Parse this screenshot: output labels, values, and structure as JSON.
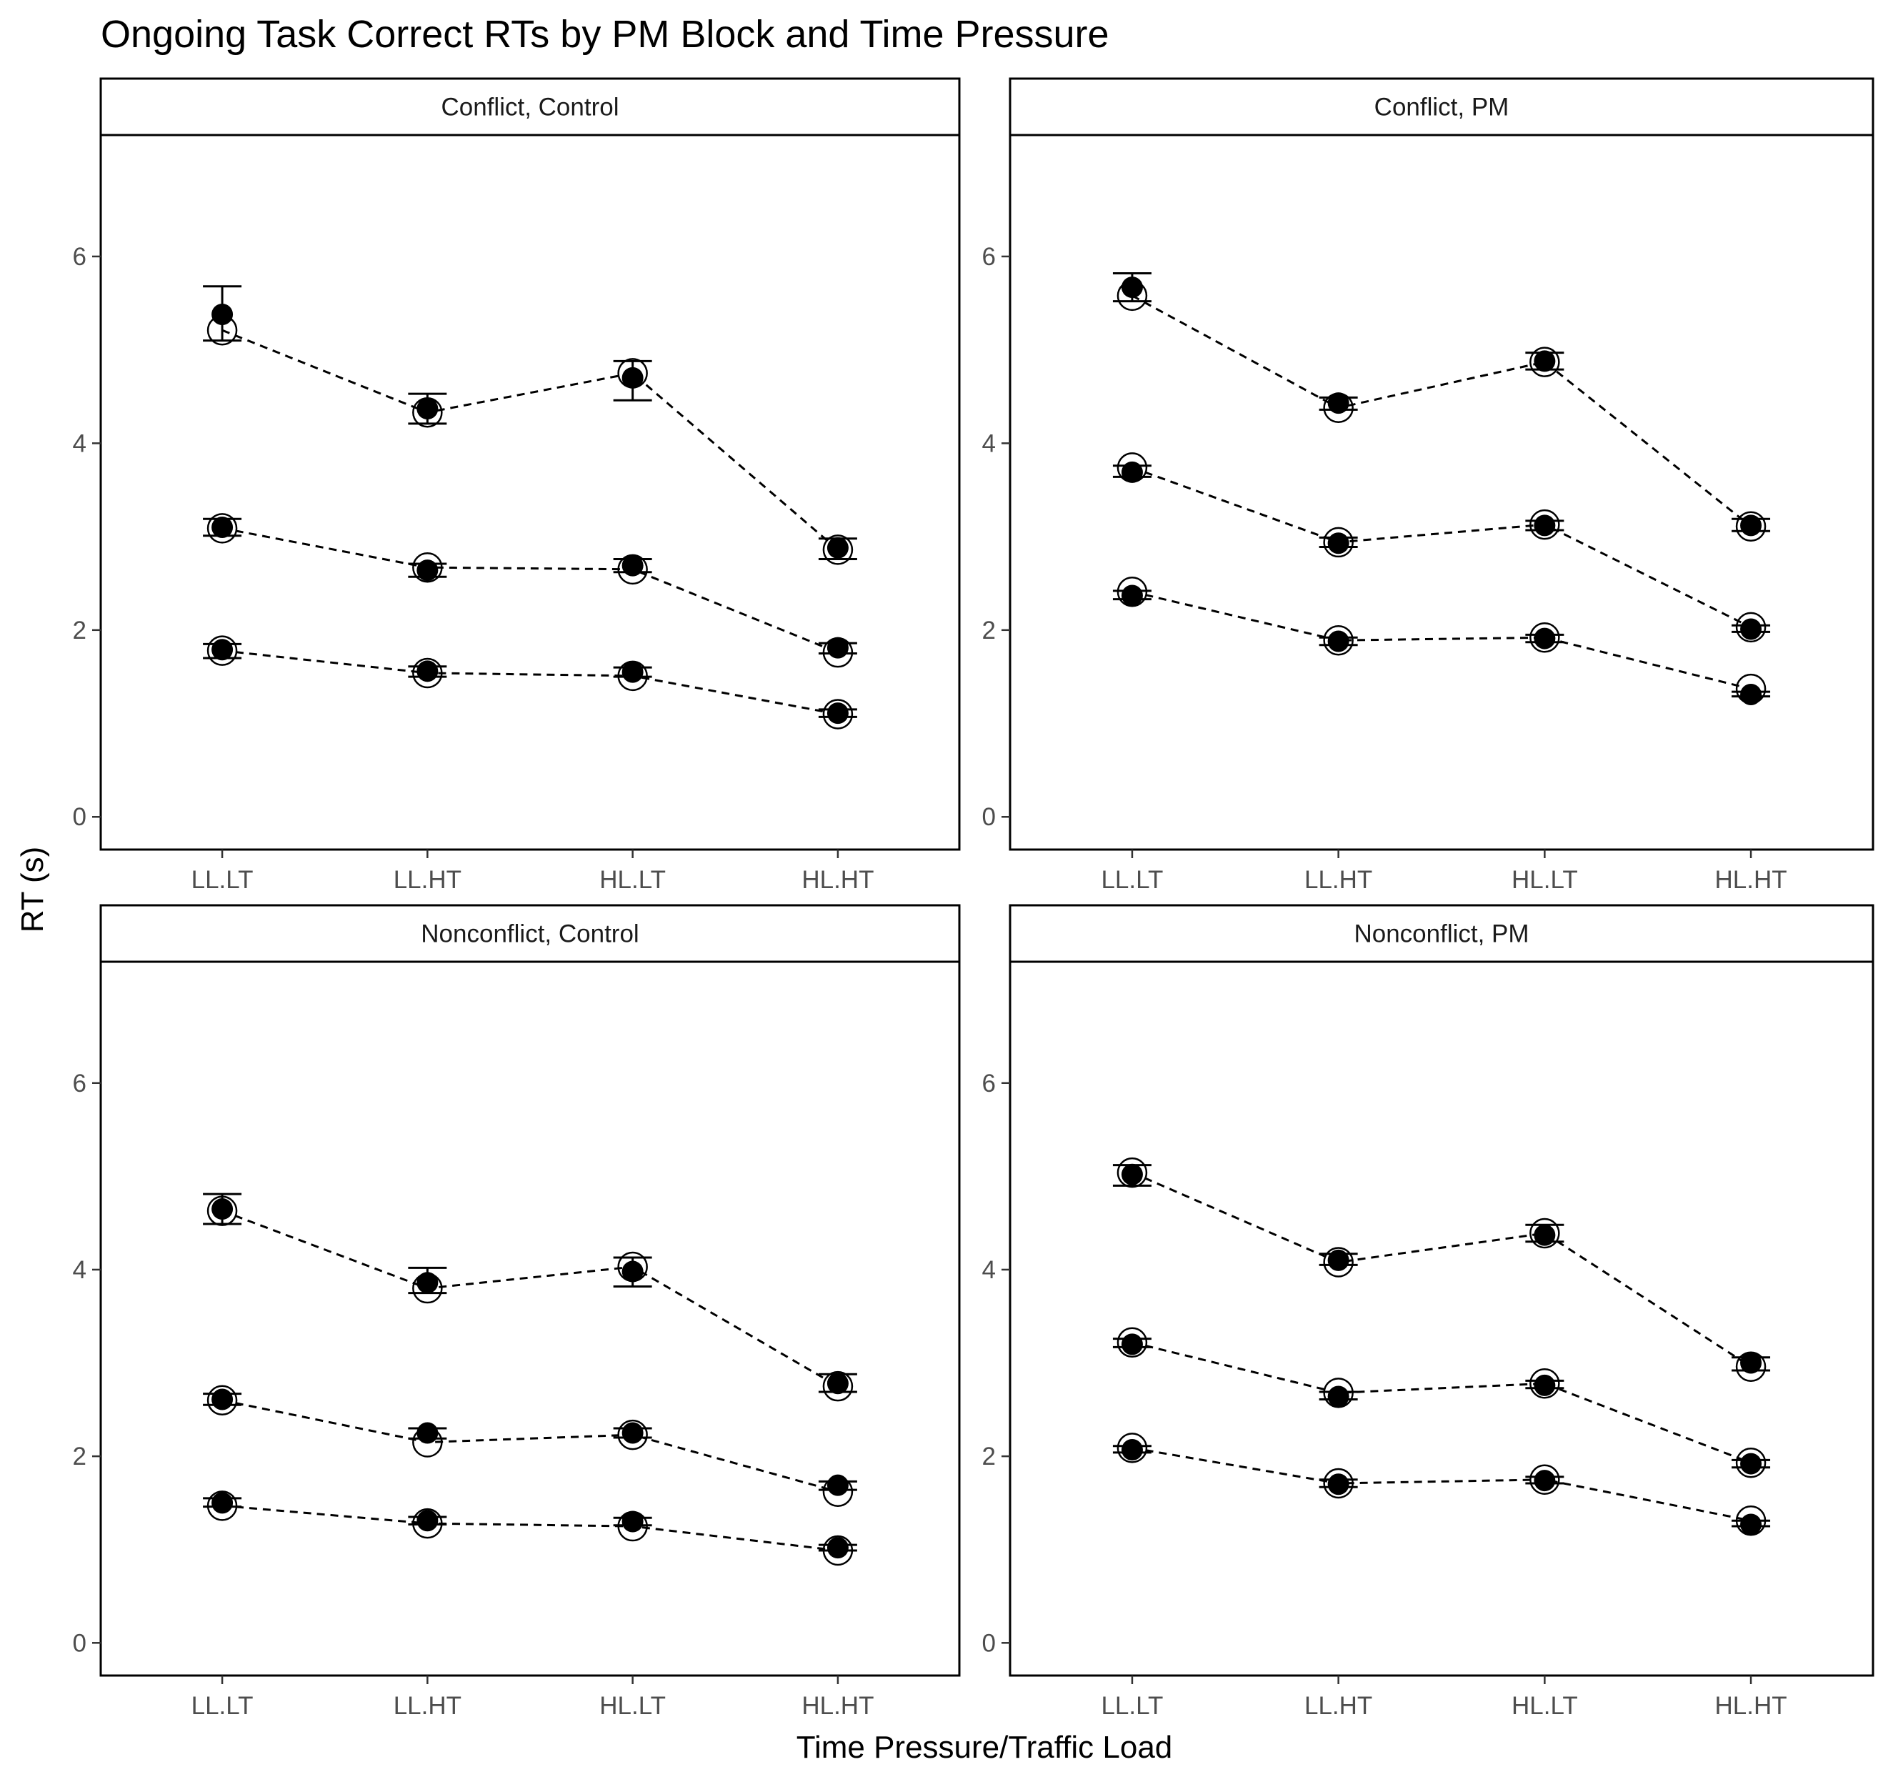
{
  "chart_data": {
    "type": "scatter",
    "title": "Ongoing Task Correct RTs by PM Block and Time Pressure",
    "xlabel": "Time Pressure/Traffic Load",
    "ylabel": "RT (s)",
    "categories": [
      "LL.LT",
      "LL.HT",
      "HL.LT",
      "HL.HT"
    ],
    "ylim": [
      -0.35,
      7.3
    ],
    "yticks": [
      0,
      2,
      4,
      6
    ],
    "grid": false,
    "legend": "none",
    "marker_styles": {
      "filled": "observed",
      "open": "model"
    },
    "panels": [
      {
        "strip_label": "Conflict, Control",
        "series": [
          {
            "filled": [
              5.38,
              4.37,
              4.7,
              2.88
            ],
            "open": [
              5.21,
              4.33,
              4.75,
              2.86
            ],
            "err_low": [
              5.1,
              4.21,
              4.46,
              2.76
            ],
            "err_high": [
              5.68,
              4.53,
              4.88,
              2.98
            ]
          },
          {
            "filled": [
              3.1,
              2.64,
              2.69,
              1.81
            ],
            "open": [
              3.09,
              2.67,
              2.65,
              1.76
            ],
            "err_low": [
              3.01,
              2.57,
              2.62,
              1.75
            ],
            "err_high": [
              3.19,
              2.71,
              2.76,
              1.86
            ]
          },
          {
            "filled": [
              1.79,
              1.56,
              1.55,
              1.11
            ],
            "open": [
              1.78,
              1.54,
              1.51,
              1.1
            ],
            "err_low": [
              1.7,
              1.5,
              1.5,
              1.07
            ],
            "err_high": [
              1.85,
              1.61,
              1.6,
              1.15
            ]
          }
        ]
      },
      {
        "strip_label": "Conflict, PM",
        "series": [
          {
            "filled": [
              5.67,
              4.43,
              4.88,
              3.12
            ],
            "open": [
              5.58,
              4.38,
              4.87,
              3.11
            ],
            "err_low": [
              5.52,
              4.36,
              4.79,
              3.06
            ],
            "err_high": [
              5.82,
              4.49,
              4.97,
              3.19
            ]
          },
          {
            "filled": [
              3.69,
              2.93,
              3.12,
              2.01
            ],
            "open": [
              3.74,
              2.94,
              3.13,
              2.03
            ],
            "err_low": [
              3.64,
              2.89,
              3.07,
              1.98
            ],
            "err_high": [
              3.76,
              2.99,
              3.17,
              2.05
            ]
          },
          {
            "filled": [
              2.37,
              1.88,
              1.91,
              1.31
            ],
            "open": [
              2.41,
              1.89,
              1.92,
              1.37
            ],
            "err_low": [
              2.33,
              1.84,
              1.87,
              1.29
            ],
            "err_high": [
              2.42,
              1.92,
              1.95,
              1.34
            ]
          }
        ]
      },
      {
        "strip_label": "Nonconflict, Control",
        "series": [
          {
            "filled": [
              4.65,
              3.86,
              3.98,
              2.78
            ],
            "open": [
              4.63,
              3.8,
              4.03,
              2.75
            ],
            "err_low": [
              4.49,
              3.75,
              3.82,
              2.69
            ],
            "err_high": [
              4.81,
              4.02,
              4.13,
              2.88
            ]
          },
          {
            "filled": [
              2.61,
              2.25,
              2.25,
              1.69
            ],
            "open": [
              2.6,
              2.15,
              2.23,
              1.62
            ],
            "err_low": [
              2.55,
              2.19,
              2.2,
              1.64
            ],
            "err_high": [
              2.67,
              2.3,
              2.3,
              1.73
            ]
          },
          {
            "filled": [
              1.5,
              1.31,
              1.3,
              1.02
            ],
            "open": [
              1.47,
              1.28,
              1.25,
              0.99
            ],
            "err_low": [
              1.46,
              1.27,
              1.26,
              0.99
            ],
            "err_high": [
              1.55,
              1.35,
              1.34,
              1.05
            ]
          }
        ]
      },
      {
        "strip_label": "Nonconflict, PM",
        "series": [
          {
            "filled": [
              5.02,
              4.1,
              4.37,
              3.0
            ],
            "open": [
              5.04,
              4.08,
              4.39,
              2.96
            ],
            "err_low": [
              4.9,
              4.05,
              4.3,
              2.92
            ],
            "err_high": [
              5.12,
              4.17,
              4.48,
              3.06
            ]
          },
          {
            "filled": [
              3.2,
              2.64,
              2.76,
              1.92
            ],
            "open": [
              3.22,
              2.68,
              2.78,
              1.93
            ],
            "err_low": [
              3.17,
              2.61,
              2.73,
              1.88
            ],
            "err_high": [
              3.26,
              2.69,
              2.81,
              1.96
            ]
          },
          {
            "filled": [
              2.07,
              1.7,
              1.74,
              1.27
            ],
            "open": [
              2.09,
              1.71,
              1.75,
              1.31
            ],
            "err_low": [
              2.04,
              1.67,
              1.71,
              1.25
            ],
            "err_high": [
              2.11,
              1.75,
              1.78,
              1.31
            ]
          }
        ]
      }
    ]
  }
}
